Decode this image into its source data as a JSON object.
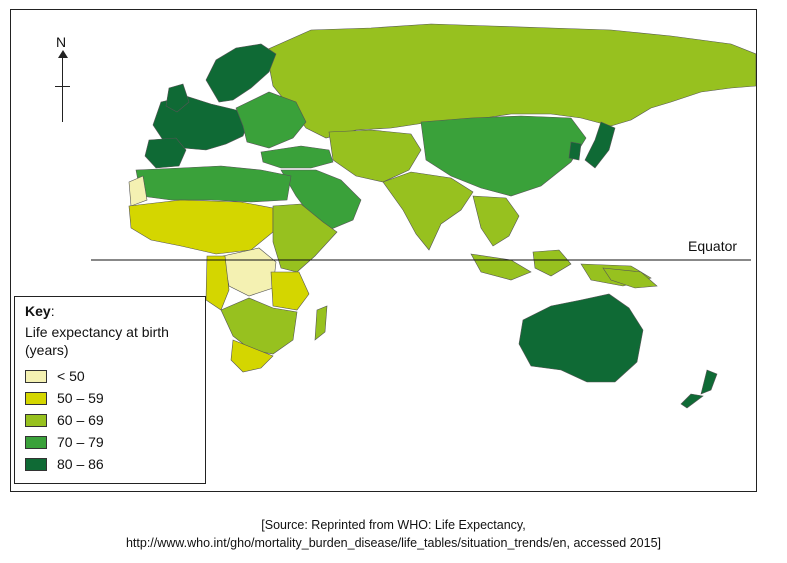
{
  "map": {
    "north_label": "N",
    "equator_label": "Equator",
    "colors": {
      "lt50": "#f4f1b2",
      "50_59": "#d4d600",
      "60_69": "#97c11f",
      "70_79": "#3aa13a",
      "80_86": "#0f6a35"
    }
  },
  "key": {
    "title": "Key",
    "title_suffix": ":",
    "subtitle": "Life expectancy at birth (years)",
    "items": [
      {
        "label": "< 50",
        "color": "#f4f1b2"
      },
      {
        "label": "50 – 59",
        "color": "#d4d600"
      },
      {
        "label": "60 – 69",
        "color": "#97c11f"
      },
      {
        "label": "70 – 79",
        "color": "#3aa13a"
      },
      {
        "label": "80 – 86",
        "color": "#0f6a35"
      }
    ]
  },
  "source": {
    "line1": "[Source: Reprinted from WHO: Life Expectancy,",
    "line2": "http://www.who.int/gho/mortality_burden_disease/life_tables/situation_trends/en, accessed 2015]"
  }
}
